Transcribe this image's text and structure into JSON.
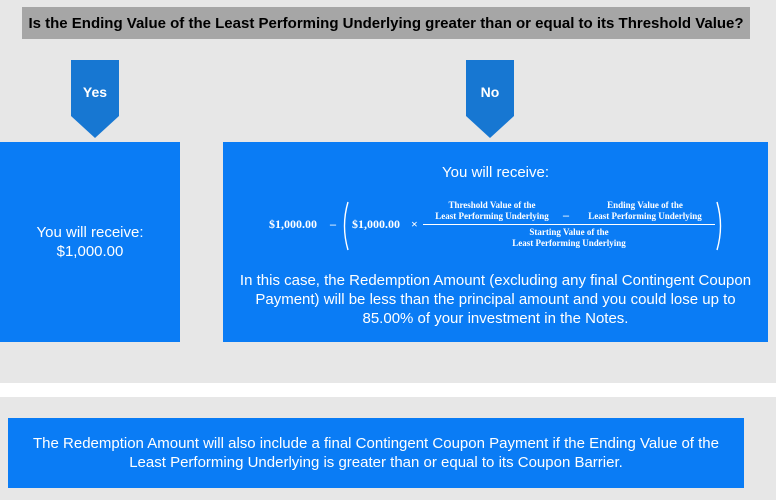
{
  "question": "Is the Ending Value of the Least Performing Underlying greater than or equal to its Threshold Value?",
  "yes_branch": {
    "label": "Yes",
    "line1": "You will receive:",
    "line2": "$1,000.00"
  },
  "no_branch": {
    "label": "No",
    "title": "You will receive:",
    "formula": {
      "principal": "$1,000.00",
      "minus": "–",
      "inner_principal": "$1,000.00",
      "times": "×",
      "threshold_line1": "Threshold Value of the",
      "threshold_line2": "Least Performing Underlying",
      "inner_minus": "–",
      "ending_line1": "Ending Value of the",
      "ending_line2": "Least Performing Underlying",
      "starting_line1": "Starting Value of the",
      "starting_line2": "Least Performing Underlying"
    },
    "explanation": "In this case, the Redemption Amount (excluding any final Contingent Coupon Payment) will be less than the principal amount and you could lose up to 85.00% of your investment in the Notes."
  },
  "footer_note": "The Redemption Amount will also include a final Contingent Coupon Payment if the Ending Value of the Least Performing Underlying is greater than or equal to its Coupon Barrier.",
  "colors": {
    "box_blue": "#0a7cf5",
    "arrow_blue": "#1777d2",
    "question_gray": "#a6a6a6",
    "background_gray": "#e7e7e7"
  }
}
